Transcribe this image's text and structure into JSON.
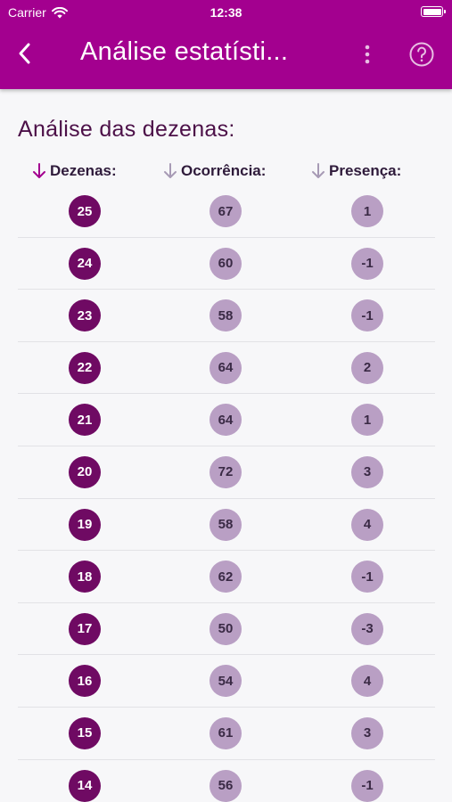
{
  "status_bar": {
    "carrier": "Carrier",
    "time": "12:38"
  },
  "nav": {
    "title": "Análise estatísti...",
    "back_icon": "chevron-left-icon",
    "menu_icon": "more-vertical-icon",
    "help_icon": "help-circle-icon"
  },
  "section_title": "Análise das dezenas:",
  "columns": [
    {
      "label": "Dezenas:",
      "sort_icon": "arrow-down-icon",
      "active": true
    },
    {
      "label": "Ocorrência:",
      "sort_icon": "arrow-down-icon",
      "active": false
    },
    {
      "label": "Presença:",
      "sort_icon": "arrow-down-icon",
      "active": false
    }
  ],
  "rows": [
    {
      "dezena": "25",
      "ocorrencia": "67",
      "presenca": "1"
    },
    {
      "dezena": "24",
      "ocorrencia": "60",
      "presenca": "-1"
    },
    {
      "dezena": "23",
      "ocorrencia": "58",
      "presenca": "-1"
    },
    {
      "dezena": "22",
      "ocorrencia": "64",
      "presenca": "2"
    },
    {
      "dezena": "21",
      "ocorrencia": "64",
      "presenca": "1"
    },
    {
      "dezena": "20",
      "ocorrencia": "72",
      "presenca": "3"
    },
    {
      "dezena": "19",
      "ocorrencia": "58",
      "presenca": "4"
    },
    {
      "dezena": "18",
      "ocorrencia": "62",
      "presenca": "-1"
    },
    {
      "dezena": "17",
      "ocorrencia": "50",
      "presenca": "-3"
    },
    {
      "dezena": "16",
      "ocorrencia": "54",
      "presenca": "4"
    },
    {
      "dezena": "15",
      "ocorrencia": "61",
      "presenca": "3"
    },
    {
      "dezena": "14",
      "ocorrencia": "56",
      "presenca": "-1"
    }
  ],
  "colors": {
    "header": "#a3008f",
    "active_sort": "#a3008f",
    "inactive_sort": "#a79ab5",
    "dezena_ball": "#6f0a63",
    "stat_ball": "#b99fc4"
  }
}
